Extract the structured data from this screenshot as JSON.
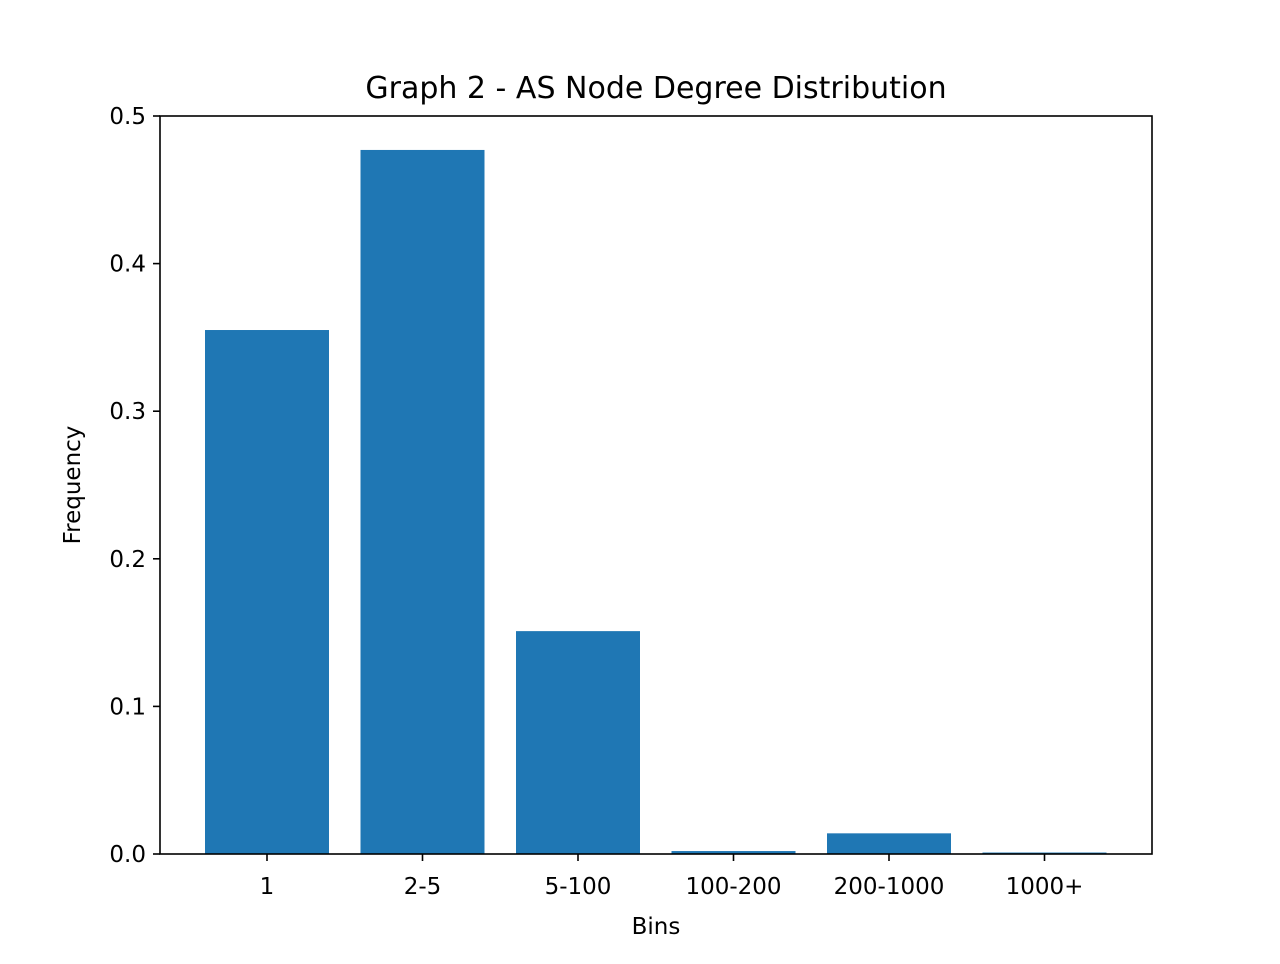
{
  "chart_data": {
    "type": "bar",
    "title": "Graph 2 - AS Node Degree Distribution",
    "xlabel": "Bins",
    "ylabel": "Frequency",
    "categories": [
      "1",
      "2-5",
      "5-100",
      "100-200",
      "200-1000",
      "1000+"
    ],
    "values": [
      0.355,
      0.477,
      0.151,
      0.002,
      0.014,
      0.001
    ],
    "ylim": [
      0,
      0.5
    ],
    "yticks": [
      0.0,
      0.1,
      0.2,
      0.3,
      0.4,
      0.5
    ],
    "ytick_labels": [
      "0.0",
      "0.1",
      "0.2",
      "0.3",
      "0.4",
      "0.5"
    ],
    "bar_color": "#1f77b4",
    "grid": false,
    "legend": "none"
  }
}
